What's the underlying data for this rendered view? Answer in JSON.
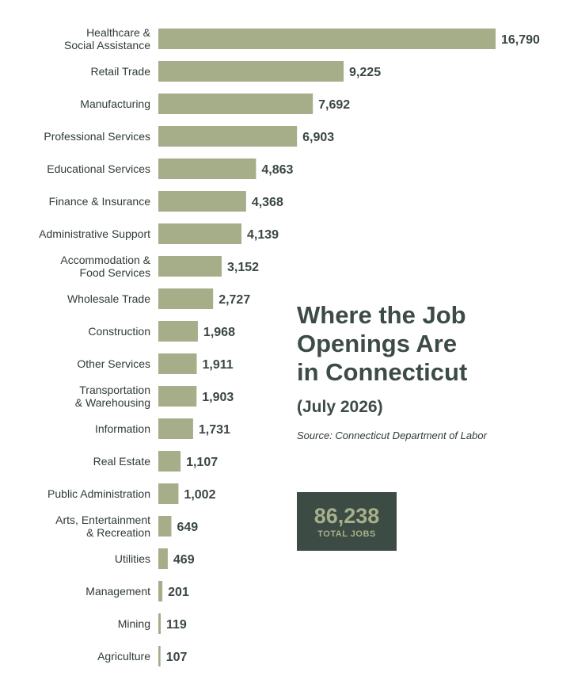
{
  "colors": {
    "bar": "#a5ad89",
    "dark": "#3d4b45",
    "accent_text": "#a6b08a"
  },
  "title": [
    "Where the Job",
    "Openings Are",
    "in Connecticut"
  ],
  "subtitle": "(July 2026)",
  "source": "Source: Connecticut Department of Labor",
  "total": {
    "value": "86,238",
    "label": "TOTAL JOBS"
  },
  "chart_data": {
    "type": "bar",
    "orientation": "horizontal",
    "categories": [
      [
        "Healthcare &",
        "Social Assistance"
      ],
      [
        "Retail Trade"
      ],
      [
        "Manufacturing"
      ],
      [
        "Professional Services"
      ],
      [
        "Educational Services"
      ],
      [
        "Finance & Insurance"
      ],
      [
        "Administrative Support"
      ],
      [
        "Accommodation &",
        "Food Services"
      ],
      [
        "Wholesale Trade"
      ],
      [
        "Construction"
      ],
      [
        "Other Services"
      ],
      [
        "Transportation",
        "& Warehousing"
      ],
      [
        "Information"
      ],
      [
        "Real Estate"
      ],
      [
        "Public Administration"
      ],
      [
        "Arts, Entertainment",
        "& Recreation"
      ],
      [
        "Utilities"
      ],
      [
        "Management"
      ],
      [
        "Mining"
      ],
      [
        "Agriculture"
      ]
    ],
    "values": [
      16790,
      9225,
      7692,
      6903,
      4863,
      4368,
      4139,
      3152,
      2727,
      1968,
      1911,
      1903,
      1731,
      1107,
      1002,
      649,
      469,
      201,
      119,
      107
    ],
    "value_labels": [
      "16,790",
      "9,225",
      "7,692",
      "6,903",
      "4,863",
      "4,368",
      "4,139",
      "3,152",
      "2,727",
      "1,968",
      "1,911",
      "1,903",
      "1,731",
      "1,107",
      "1,002",
      "649",
      "469",
      "201",
      "119",
      "107"
    ],
    "sort": "descending",
    "grid": false,
    "legend": "none"
  }
}
